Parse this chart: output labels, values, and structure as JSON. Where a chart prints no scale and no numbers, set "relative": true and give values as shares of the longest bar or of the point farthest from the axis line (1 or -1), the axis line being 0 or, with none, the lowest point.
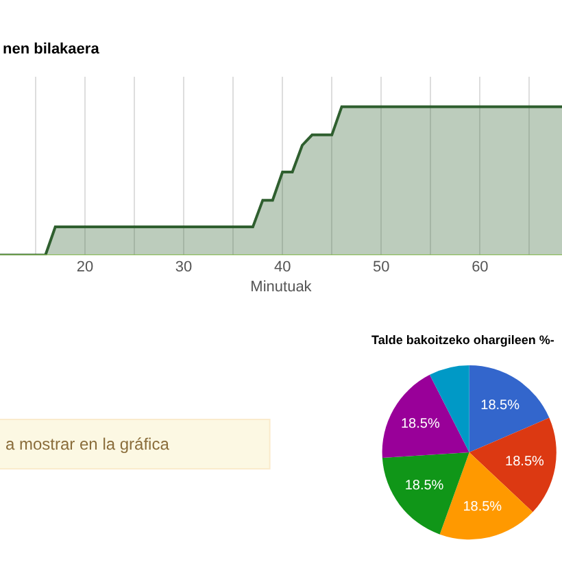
{
  "chart_data": [
    {
      "type": "area",
      "title": "nen bilakaera",
      "xlabel": "Minutuak",
      "relative": true,
      "xlim": [
        11.4,
        68.3
      ],
      "xticks": [
        {
          "value": 15,
          "label": null
        },
        20,
        {
          "value": 25,
          "label": null
        },
        30,
        {
          "value": 35,
          "label": null
        },
        40,
        {
          "value": 45,
          "label": null
        },
        50,
        {
          "value": 55,
          "label": null
        },
        60,
        {
          "value": 65,
          "label": null
        }
      ],
      "grid": "x",
      "marker": "none",
      "line_style": "solid",
      "series": [
        {
          "color": "#2f5f2f",
          "x": [
            11.4,
            16,
            17,
            37,
            38,
            39,
            40,
            41,
            42,
            43,
            45,
            46,
            68.3
          ],
          "values": [
            0,
            0,
            0.19,
            0.19,
            0.37,
            0.37,
            0.56,
            0.56,
            0.74,
            0.81,
            0.81,
            1,
            1
          ]
        }
      ]
    },
    {
      "type": "other",
      "annotations": [
        "a mostrar en la gráfica"
      ]
    },
    {
      "type": "pie",
      "title": "Talde bakoitzeko ohargileen %-",
      "categories": [
        null,
        null,
        null,
        null,
        null,
        null
      ],
      "values": [
        18.5,
        18.5,
        18.5,
        18.5,
        18.5,
        7.5
      ],
      "colors": [
        "#3366cc",
        "#dc3912",
        "#ff9900",
        "#109618",
        "#990099",
        "#0099c6"
      ],
      "value_labels": [
        "18.5%",
        "18.5%",
        "18.5%",
        "18.5%",
        "18.5%",
        null
      ]
    }
  ]
}
